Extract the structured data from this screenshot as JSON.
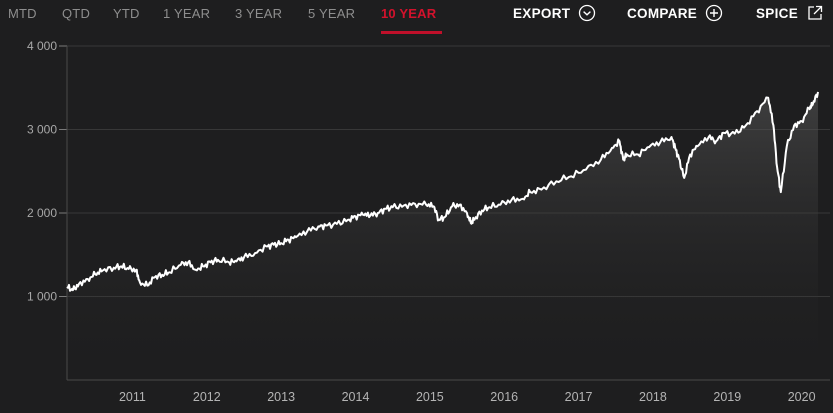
{
  "tabs": [
    {
      "label": "MTD",
      "active": false
    },
    {
      "label": "QTD",
      "active": false
    },
    {
      "label": "YTD",
      "active": false
    },
    {
      "label": "1 YEAR",
      "active": false
    },
    {
      "label": "3 YEAR",
      "active": false
    },
    {
      "label": "5 YEAR",
      "active": false
    },
    {
      "label": "10 YEAR",
      "active": true
    }
  ],
  "actions": {
    "export_label": "EXPORT",
    "compare_label": "COMPARE",
    "spice_label": "SPICE",
    "export_icon": "chevron-down-circle-icon",
    "compare_icon": "plus-circle-icon",
    "spice_icon": "external-link-icon"
  },
  "colors": {
    "background": "#1e1e1f",
    "accent": "#d3122c",
    "line": "#ffffff",
    "grid": "#3a3a3a",
    "tab_inactive": "#8e8e8e"
  },
  "chart_data": {
    "type": "area",
    "title": "",
    "xlabel": "",
    "ylabel": "",
    "ylim": [
      0,
      4000
    ],
    "xlim": [
      2010.62,
      2020.72
    ],
    "grid": true,
    "y_ticks": [
      "1 000",
      "2 000",
      "3 000",
      "4 000"
    ],
    "y_tick_values": [
      1000,
      2000,
      3000,
      4000
    ],
    "x_ticks": [
      "2011",
      "2012",
      "2013",
      "2014",
      "2015",
      "2016",
      "2017",
      "2018",
      "2019",
      "2020"
    ],
    "x_tick_values": [
      2011,
      2012,
      2013,
      2014,
      2015,
      2016,
      2017,
      2018,
      2019,
      2020
    ],
    "series": [
      {
        "x": [
          2010.62,
          2010.7,
          2010.78,
          2010.9,
          2011.0,
          2011.1,
          2011.25,
          2011.35,
          2011.45,
          2011.55,
          2011.6,
          2011.7,
          2011.8,
          2011.9,
          2012.0,
          2012.15,
          2012.25,
          2012.35,
          2012.45,
          2012.55,
          2012.65,
          2012.8,
          2012.9,
          2013.0,
          2013.15,
          2013.3,
          2013.4,
          2013.5,
          2013.6,
          2013.7,
          2013.85,
          2014.0,
          2014.1,
          2014.25,
          2014.4,
          2014.5,
          2014.6,
          2014.7,
          2014.8,
          2014.9,
          2015.0,
          2015.15,
          2015.3,
          2015.45,
          2015.55,
          2015.62,
          2015.7,
          2015.8,
          2015.9,
          2016.0,
          2016.05,
          2016.1,
          2016.2,
          2016.3,
          2016.45,
          2016.6,
          2016.75,
          2016.85,
          2017.0,
          2017.2,
          2017.4,
          2017.6,
          2017.8,
          2017.95,
          2018.05,
          2018.1,
          2018.15,
          2018.3,
          2018.45,
          2018.6,
          2018.75,
          2018.8,
          2018.85,
          2018.92,
          2019.0,
          2019.1,
          2019.25,
          2019.35,
          2019.45,
          2019.6,
          2019.75,
          2019.9,
          2020.05,
          2020.12,
          2020.17,
          2020.22,
          2020.3,
          2020.4,
          2020.5,
          2020.6,
          2020.65,
          2020.72
        ],
        "values": [
          1115,
          1075,
          1150,
          1210,
          1265,
          1310,
          1345,
          1360,
          1330,
          1320,
          1170,
          1130,
          1230,
          1260,
          1290,
          1380,
          1410,
          1320,
          1360,
          1410,
          1440,
          1410,
          1420,
          1470,
          1520,
          1600,
          1620,
          1640,
          1680,
          1710,
          1780,
          1840,
          1850,
          1870,
          1920,
          1960,
          1980,
          1970,
          2000,
          2050,
          2070,
          2090,
          2110,
          2100,
          2080,
          1920,
          1950,
          2080,
          2100,
          2000,
          1880,
          1920,
          2030,
          2070,
          2100,
          2160,
          2170,
          2250,
          2280,
          2380,
          2440,
          2520,
          2640,
          2780,
          2860,
          2640,
          2700,
          2700,
          2790,
          2850,
          2910,
          2780,
          2650,
          2420,
          2700,
          2800,
          2910,
          2860,
          2960,
          2950,
          3050,
          3220,
          3380,
          3050,
          2550,
          2250,
          2800,
          3050,
          3100,
          3250,
          3300,
          3450
        ]
      }
    ]
  }
}
